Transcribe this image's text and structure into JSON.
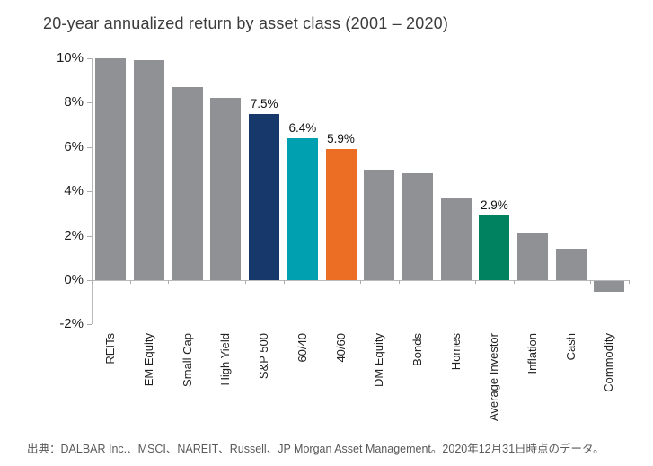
{
  "footer": "出典：DALBAR Inc.、MSCI、NAREIT、Russell、JP Morgan Asset Management。2020年12月31日時点のデータ。",
  "colors": {
    "default_bar": "#909194",
    "highlight_navy": "#17386a",
    "highlight_teal": "#00a0b0",
    "highlight_orange": "#ec6e24",
    "highlight_green": "#008160",
    "axis_line": "#b9b9b9",
    "tick": "#adadad",
    "title_text": "#3c3c3c",
    "label_text": "#222222",
    "source_text": "#595959"
  },
  "chart_data": {
    "type": "bar",
    "title": "20-year annualized return by asset class (2001 – 2020)",
    "xlabel": "",
    "ylabel": "",
    "ylim": [
      -2,
      10
    ],
    "grid": false,
    "legend": "none",
    "categories": [
      "REITs",
      "EM Equity",
      "Small Cap",
      "High Yield",
      "S&P 500",
      "60/40",
      "40/60",
      "DM Equity",
      "Bonds",
      "Homes",
      "Average Investor",
      "Inflation",
      "Cash",
      "Commodity"
    ],
    "values": [
      10.0,
      9.9,
      8.7,
      8.2,
      7.5,
      6.4,
      5.9,
      5.0,
      4.8,
      3.7,
      2.9,
      2.1,
      1.4,
      -0.5
    ],
    "data_labels": [
      "",
      "",
      "",
      "",
      "7.5%",
      "6.4%",
      "5.9%",
      "",
      "",
      "",
      "2.9%",
      "",
      "",
      ""
    ],
    "bar_colors": [
      "#909194",
      "#909194",
      "#909194",
      "#909194",
      "#17386a",
      "#00a0b0",
      "#ec6e24",
      "#909194",
      "#909194",
      "#909194",
      "#008160",
      "#909194",
      "#909194",
      "#909194"
    ],
    "y_ticks": [
      {
        "value": 10,
        "label": "10%"
      },
      {
        "value": 8,
        "label": "8%"
      },
      {
        "value": 6,
        "label": "6%"
      },
      {
        "value": 4,
        "label": "4%"
      },
      {
        "value": 2,
        "label": "2%"
      },
      {
        "value": 0,
        "label": "0%"
      },
      {
        "value": -2,
        "label": "-2%"
      }
    ]
  }
}
